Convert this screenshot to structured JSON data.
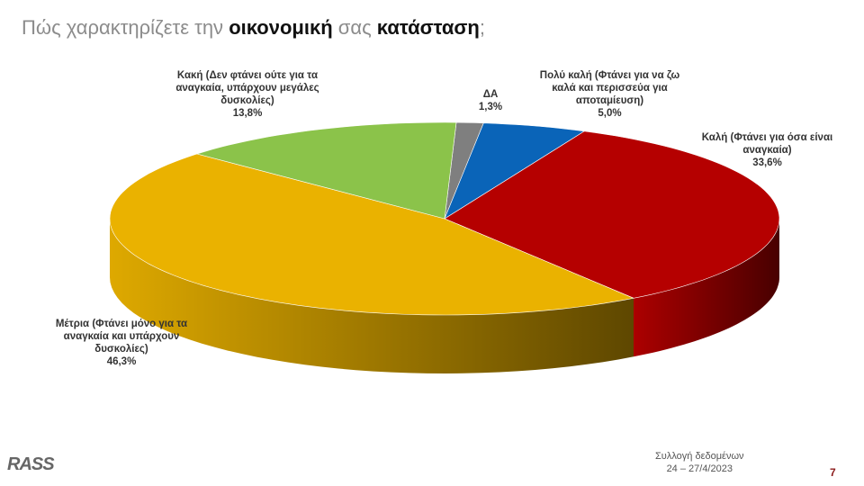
{
  "title": {
    "part1": "Πώς χαρακτηρίζετε την ",
    "part2": "οικονομική",
    "part3": " σας ",
    "part4": "κατάσταση",
    ";": ";"
  },
  "chart_data": {
    "type": "pie",
    "style": "3d",
    "categories": [
      "ΔΑ",
      "Πολύ καλή (Φτάνει για να ζω καλά και περισσεύα για αποταμίευση)",
      "Καλή (Φτάνει για όσα είναι αναγκαία)",
      "Μέτρια (Φτάνει μόνο για τα αναγκαία και υπάρχουν δυσκολίες)",
      "Κακή (Δεν φτάνει ούτε για τα αναγκαία, υπάρχουν μεγάλες δυσκολίες)"
    ],
    "values": [
      1.3,
      5.0,
      33.6,
      46.3,
      13.8
    ],
    "value_labels": [
      "1,3%",
      "5,0%",
      "33,6%",
      "46,3%",
      "13,8%"
    ],
    "colors": [
      "#7f7f7f",
      "#0a64b8",
      "#b50000",
      "#eab200",
      "#8bc34a"
    ]
  },
  "footer": {
    "logo": "RASS",
    "source_line1": "Συλλογή δεδομένων",
    "source_line2": "24 – 27/4/2023",
    "page": "7"
  }
}
